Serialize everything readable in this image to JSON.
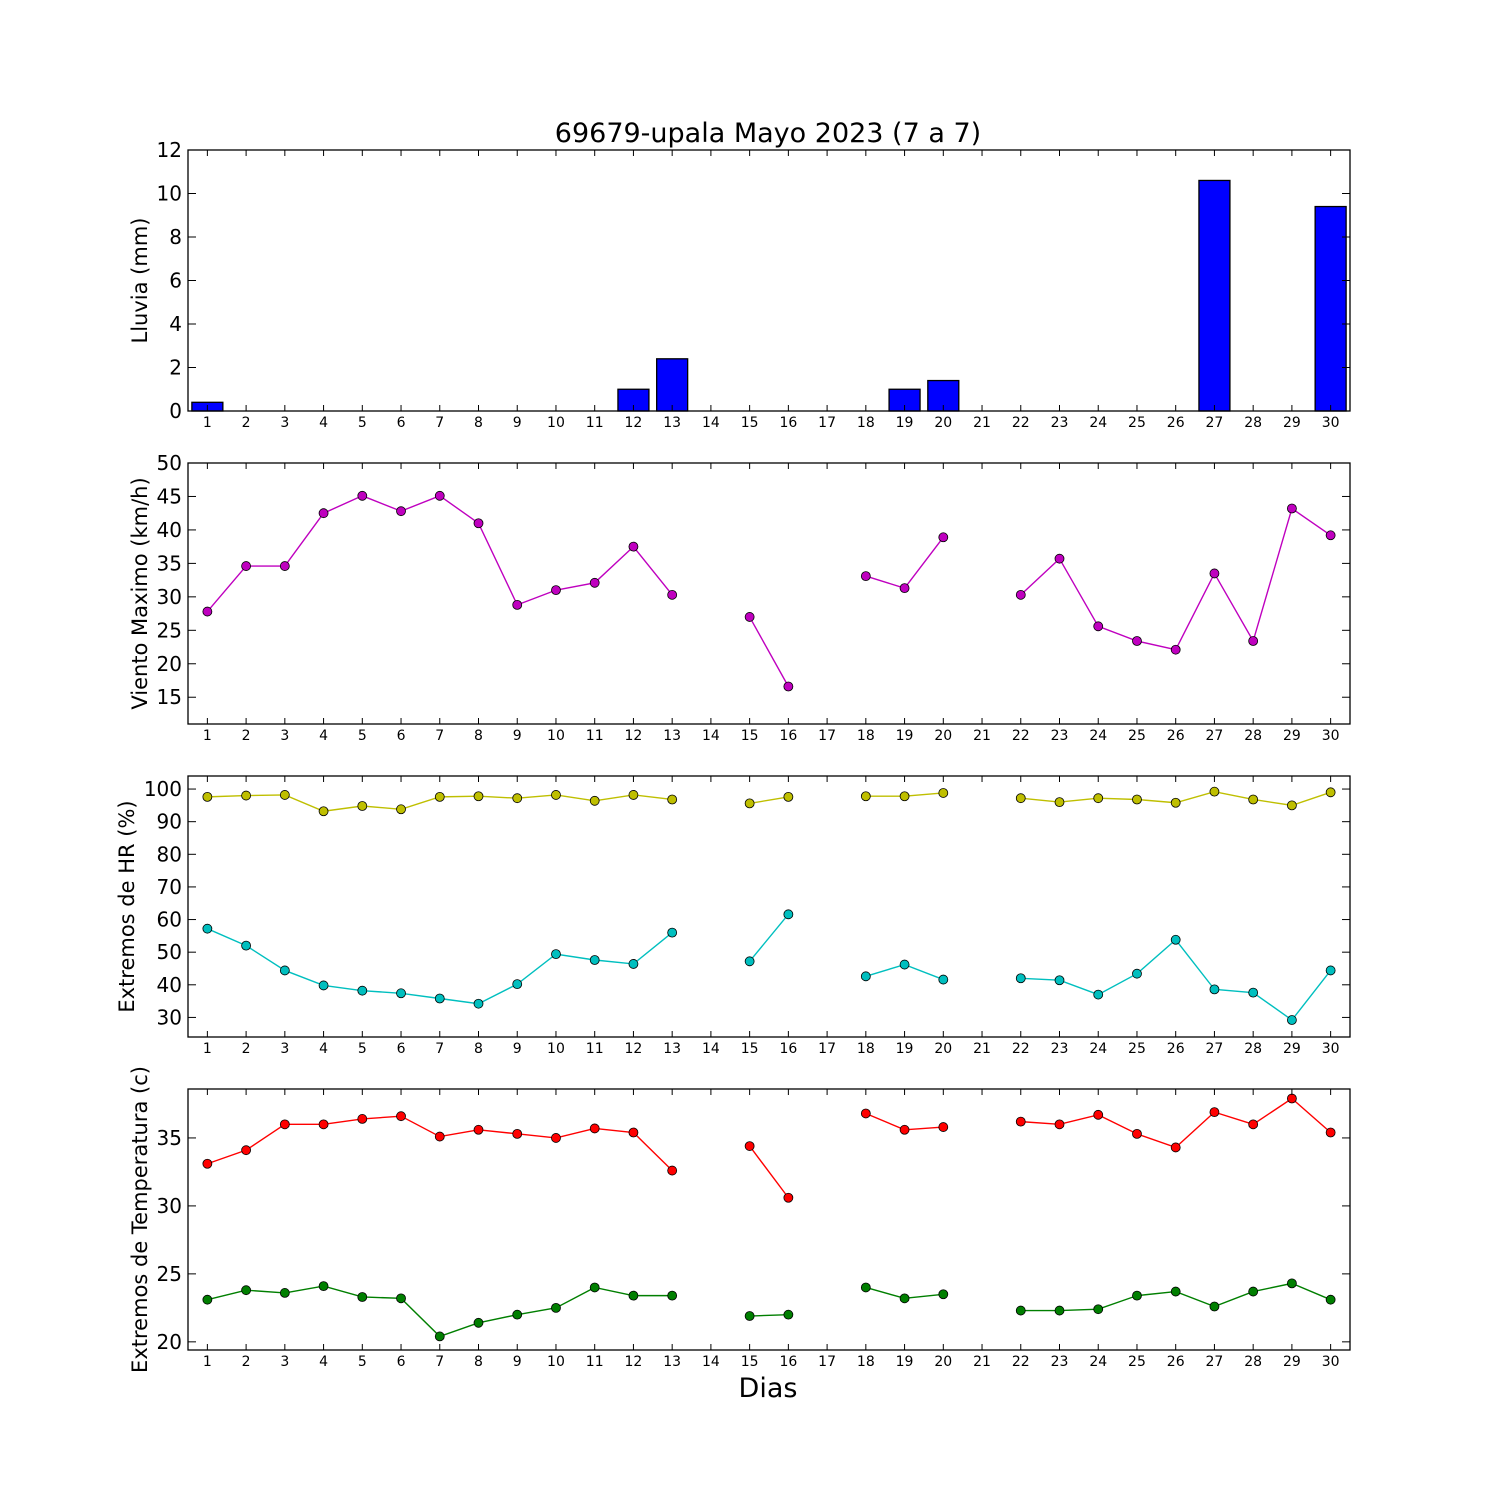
{
  "chart_data": {
    "type": "multi-panel",
    "title": "69679-upala Mayo 2023  (7 a 7)",
    "xlabel": "Dias",
    "days": [
      1,
      2,
      3,
      4,
      5,
      6,
      7,
      8,
      9,
      10,
      11,
      12,
      13,
      14,
      15,
      16,
      17,
      18,
      19,
      20,
      21,
      22,
      23,
      24,
      25,
      26,
      27,
      28,
      29,
      30
    ],
    "panels": [
      {
        "type": "bar",
        "ylabel": "Lluvia (mm)",
        "ylim": [
          0,
          12
        ],
        "yticks": [
          0,
          2,
          4,
          6,
          8,
          10,
          12
        ],
        "series": [
          {
            "color": "#0000ff",
            "values": [
              0.4,
              0,
              0,
              0,
              0,
              0,
              0,
              0,
              0,
              0,
              0,
              1.0,
              2.4,
              0,
              0,
              0,
              0,
              0,
              1.0,
              1.4,
              0,
              0,
              0,
              0,
              0,
              0,
              10.6,
              0,
              0,
              9.4
            ]
          }
        ]
      },
      {
        "type": "line",
        "ylabel": "Viento Maximo (km/h)",
        "ylim": [
          11,
          50
        ],
        "yticks": [
          15,
          20,
          25,
          30,
          35,
          40,
          45,
          50
        ],
        "series": [
          {
            "color": "#bf00bf",
            "values": [
              27.8,
              34.6,
              34.6,
              42.5,
              45.1,
              42.8,
              45.1,
              41.0,
              28.8,
              31.0,
              32.1,
              37.5,
              30.3,
              null,
              27.0,
              16.6,
              null,
              33.1,
              31.3,
              38.9,
              null,
              30.3,
              35.7,
              25.6,
              23.4,
              22.1,
              33.5,
              23.4,
              43.2,
              39.2
            ]
          }
        ]
      },
      {
        "type": "line",
        "ylabel": "Extremos de HR (%)",
        "ylim": [
          24,
          104
        ],
        "yticks": [
          30,
          40,
          50,
          60,
          70,
          80,
          90,
          100
        ],
        "series": [
          {
            "color": "#bfbf00",
            "values": [
              97.6,
              98.0,
              98.2,
              93.2,
              94.8,
              93.8,
              97.6,
              97.8,
              97.2,
              98.2,
              96.4,
              98.2,
              96.8,
              null,
              95.6,
              97.6,
              null,
              97.8,
              97.8,
              98.8,
              null,
              97.2,
              96.0,
              97.2,
              96.8,
              95.8,
              99.2,
              96.8,
              95.0,
              99.0
            ]
          },
          {
            "color": "#00bfbf",
            "values": [
              57.2,
              52.0,
              44.4,
              39.8,
              38.2,
              37.4,
              35.8,
              34.2,
              40.2,
              49.4,
              47.6,
              46.4,
              56.0,
              null,
              47.2,
              61.6,
              null,
              42.6,
              46.2,
              41.6,
              null,
              42.0,
              41.4,
              37.0,
              43.4,
              53.8,
              38.6,
              37.6,
              29.2,
              44.4
            ]
          }
        ]
      },
      {
        "type": "line",
        "ylabel": "Extremos de Temperatura (c)",
        "ylim": [
          19.4,
          38.6
        ],
        "yticks": [
          20,
          25,
          30,
          35
        ],
        "series": [
          {
            "color": "#ff0000",
            "values": [
              33.1,
              34.1,
              36.0,
              36.0,
              36.4,
              36.6,
              35.1,
              35.6,
              35.3,
              35.0,
              35.7,
              35.4,
              32.6,
              null,
              34.4,
              30.6,
              null,
              36.8,
              35.6,
              35.8,
              null,
              36.2,
              36.0,
              36.7,
              35.3,
              34.3,
              36.9,
              36.0,
              37.9,
              35.4
            ]
          },
          {
            "color": "#007f00",
            "values": [
              23.1,
              23.8,
              23.6,
              24.1,
              23.3,
              23.2,
              20.4,
              21.4,
              22.0,
              22.5,
              24.0,
              23.4,
              23.4,
              null,
              21.9,
              22.0,
              null,
              24.0,
              23.2,
              23.5,
              null,
              22.3,
              22.3,
              22.4,
              23.4,
              23.7,
              22.6,
              23.7,
              24.3,
              23.1
            ]
          }
        ]
      }
    ]
  }
}
